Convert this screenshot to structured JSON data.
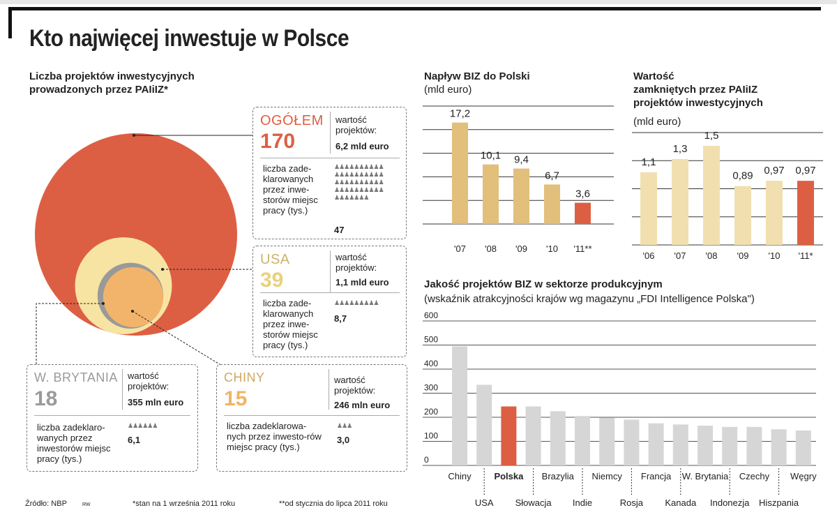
{
  "title": "Kto najwięcej inwestuje w Polsce",
  "projects_section": {
    "subtitle_line1": "Liczba projektów inwestycyjnych",
    "subtitle_line2": "prowadzonych przez PAIiIZ*",
    "total": {
      "name": "OGÓŁEM",
      "count": "170",
      "value_label": "wartość projektów:",
      "value": "6,2 mld euro",
      "jobs_label": "liczba zade-klarowanych przez inwe-storów miejsc pracy (tys.)",
      "jobs": "47",
      "people": "♟♟♟♟♟♟♟♟♟♟ ♟♟♟♟♟♟♟♟♟♟ ♟♟♟♟♟♟♟♟♟♟ ♟♟♟♟♟♟♟♟♟♟ ♟♟♟♟♟♟♟"
    },
    "usa": {
      "name": "USA",
      "count": "39",
      "value_label": "wartość projektów:",
      "value": "1,1 mld euro",
      "jobs_label": "liczba zade-klarowanych przez inwe-storów miejsc pracy (tys.)",
      "jobs": "8,7",
      "people": "♟♟♟♟♟♟♟♟♟"
    },
    "uk": {
      "name": "W. BRYTANIA",
      "count": "18",
      "value_label": "wartość projektów:",
      "value": "355 mln euro",
      "jobs_label": "liczba zadeklaro-wanych przez inwestorów miejsc pracy (tys.)",
      "jobs": "6,1",
      "people": "♟♟♟♟♟♟"
    },
    "china": {
      "name": "CHINY",
      "count": "15",
      "value_label": "wartość projektów:",
      "value": "246 mln euro",
      "jobs_label": "liczba zadeklarowa-nych przez inwesto-rów miejsc pracy (tys.)",
      "jobs": "3,0",
      "people": "♟♟♟"
    }
  },
  "fdi_inflow": {
    "subtitle": "Napływ BIZ do Polski",
    "unit": "(mld euro)"
  },
  "closed_projects": {
    "subtitle_line1": "Wartość",
    "subtitle_line2": "zamkniętych przez PAIiIZ",
    "subtitle_line3": "projektów inwestycyjnych",
    "unit": "(mld euro)"
  },
  "quality": {
    "subtitle": "Jakość projektów BIZ w sektorze produkcyjnym",
    "unit": "(wskaźnik atrakcyjności krajów wg magazynu „FDI Intelligence Polska\")"
  },
  "footer": {
    "source": "Źródło: NBP",
    "initials": "RW",
    "note1": "*stan na 1 września 2011 roku",
    "note2": "**od stycznia do lipca 2011 roku"
  },
  "colors": {
    "red": "#dd5f43",
    "gold": "#e2bf7a",
    "cream": "#f2dfb0",
    "light_yellow": "#f7e4a3",
    "gray": "#999999",
    "orange": "#f2b46b",
    "bar_gray": "#d6d6d6"
  },
  "chart_data": [
    {
      "type": "bar",
      "title": "Napływ BIZ do Polski",
      "ylabel": "(mld euro)",
      "categories": [
        "'07",
        "'08",
        "'09",
        "'10",
        "'11**"
      ],
      "values": [
        17.2,
        10.1,
        9.4,
        6.7,
        3.6
      ],
      "value_labels": [
        "17,2",
        "10,1",
        "9,4",
        "6,7",
        "3,6"
      ],
      "ylim": [
        0,
        20
      ],
      "highlight_index": 4
    },
    {
      "type": "bar",
      "title": "Wartość zamkniętych przez PAIiIZ projektów inwestycyjnych",
      "ylabel": "(mld euro)",
      "categories": [
        "'06",
        "'07",
        "'08",
        "'09",
        "'10",
        "'11*"
      ],
      "values": [
        1.1,
        1.3,
        1.5,
        0.89,
        0.97,
        0.97
      ],
      "value_labels": [
        "1,1",
        "1,3",
        "1,5",
        "0,89",
        "0,97",
        "0,97"
      ],
      "ylim": [
        0,
        1.7
      ],
      "highlight_index": 5
    },
    {
      "type": "bar",
      "title": "Jakość projektów BIZ w sektorze produkcyjnym",
      "ylabel": "(wskaźnik atrakcyjności krajów wg magazynu „FDI Intelligence Polska\")",
      "categories": [
        "Chiny",
        "USA",
        "Polska",
        "Słowacja",
        "Brazylia",
        "Indie",
        "Niemcy",
        "Rosja",
        "Francja",
        "Kanada",
        "W. Brytania",
        "Indonezja",
        "Czechy",
        "Hiszpania",
        "Węgry"
      ],
      "values": [
        495,
        335,
        245,
        245,
        225,
        205,
        198,
        190,
        175,
        170,
        165,
        160,
        160,
        150,
        145
      ],
      "ylim": [
        0,
        600
      ],
      "yticks": [
        0,
        100,
        200,
        300,
        400,
        500,
        600
      ],
      "highlight_index": 2,
      "grid": true
    },
    {
      "type": "bubble",
      "title": "Liczba projektów inwestycyjnych prowadzonych przez PAIiIZ*",
      "categories": [
        "OGÓŁEM",
        "USA",
        "W. BRYTANIA",
        "CHINY"
      ],
      "values": [
        170,
        39,
        18,
        15
      ]
    }
  ]
}
